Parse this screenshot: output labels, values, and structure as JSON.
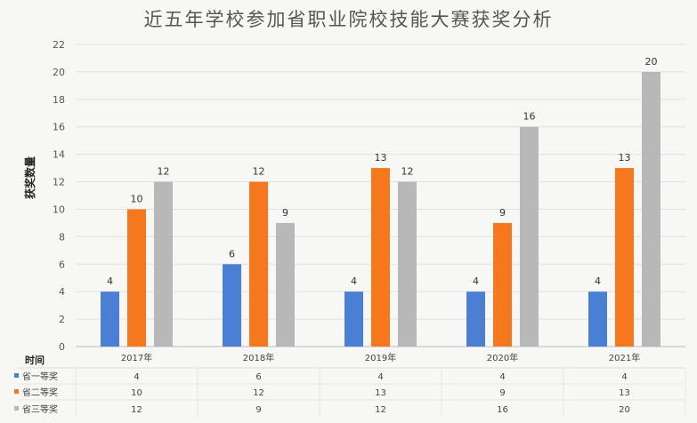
{
  "chart_data": {
    "type": "bar",
    "title": "近五年学校参加省职业院校技能大赛获奖分析",
    "ylabel": "获奖数量",
    "xlabel": "时间",
    "ylim": [
      0,
      22
    ],
    "yticks": [
      0,
      2,
      4,
      6,
      8,
      10,
      12,
      14,
      16,
      18,
      20,
      22
    ],
    "categories": [
      "2017年",
      "2018年",
      "2019年",
      "2020年",
      "2021年"
    ],
    "series": [
      {
        "name": "省一等奖",
        "color": "#4a7fd4",
        "values": [
          4,
          6,
          4,
          4,
          4
        ]
      },
      {
        "name": "省二等奖",
        "color": "#f5781e",
        "values": [
          10,
          12,
          13,
          9,
          13
        ]
      },
      {
        "name": "省三等奖",
        "color": "#b8b8b8",
        "values": [
          12,
          9,
          12,
          16,
          20
        ]
      }
    ],
    "grid": true,
    "legend": "data-table-bottom"
  }
}
